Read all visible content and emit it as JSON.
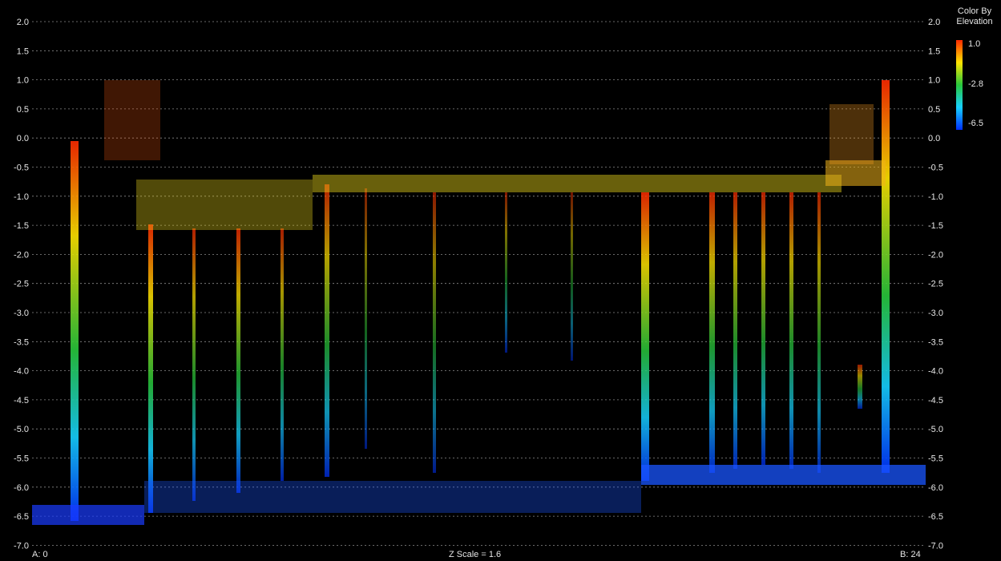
{
  "axis": {
    "ticks": [
      "2.0",
      "1.5",
      "1.0",
      "0.5",
      "0.0",
      "-0.5",
      "-1.0",
      "-1.5",
      "-2.0",
      "-2.5",
      "-3.0",
      "-3.5",
      "-4.0",
      "-4.5",
      "-5.0",
      "-5.5",
      "-6.0",
      "-6.5",
      "-7.0"
    ]
  },
  "legend": {
    "title_line1": "Color By",
    "title_line2": "Elevation",
    "max": "1.0",
    "mid": "-2.8",
    "min": "-6.5",
    "colors": [
      "#ff2a00",
      "#ffe400",
      "#28c83c",
      "#16d0ff",
      "#0030ff"
    ]
  },
  "footer": {
    "start": "A: 0",
    "zscale": "Z Scale = 1.6",
    "end": "B: 24"
  }
}
